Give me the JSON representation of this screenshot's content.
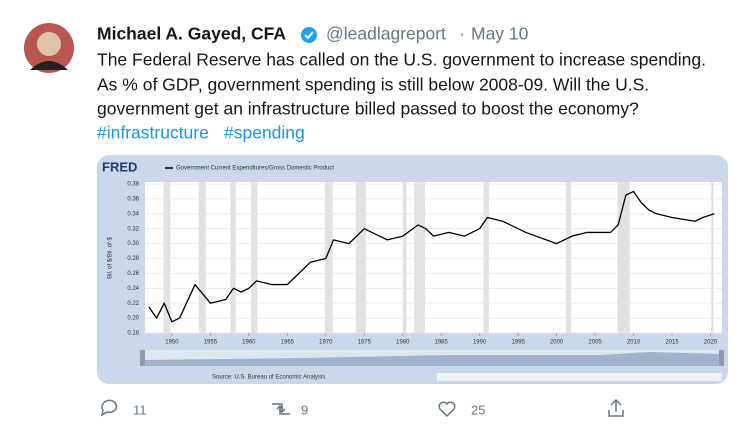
{
  "tweet": {
    "name": "Michael A. Gayed, CFA",
    "handle": "@leadlagreport",
    "separator": "·",
    "date": "May 10",
    "text_lines": [
      "The Federal Reserve has called on the U.S. government to increase spending.",
      "As % of GDP, government spending is still below 2008-09. Will the U.S.",
      "government get an infrastructure billed passed to boost the economy?"
    ],
    "hashtags": [
      "#infrastructure",
      "#spending"
    ],
    "replies": 11,
    "retweets": 9,
    "likes": 25
  },
  "chart_data": {
    "type": "line",
    "logo": "FRED",
    "title": "Government Current Expenditures/Gross Domestic Product",
    "ylabel": "Bil. of $/Bil. of $",
    "source": "Source: U.S. Bureau of Economic Analysis",
    "color": "#000000",
    "x": [
      1947,
      1948,
      1949,
      1950,
      1951,
      1953,
      1955,
      1957,
      1958,
      1959,
      1960,
      1961,
      1963,
      1965,
      1966,
      1968,
      1970,
      1971,
      1973,
      1975,
      1978,
      1980,
      1982,
      1983,
      1984,
      1986,
      1988,
      1990,
      1991,
      1993,
      1996,
      2000,
      2002,
      2004,
      2007,
      2008,
      2009,
      2010,
      2011,
      2012,
      2013,
      2015,
      2018,
      2019,
      2020.5
    ],
    "values": [
      0.215,
      0.2,
      0.22,
      0.195,
      0.2,
      0.245,
      0.22,
      0.225,
      0.24,
      0.235,
      0.24,
      0.25,
      0.245,
      0.245,
      0.255,
      0.275,
      0.28,
      0.305,
      0.3,
      0.32,
      0.305,
      0.31,
      0.325,
      0.32,
      0.31,
      0.315,
      0.31,
      0.32,
      0.335,
      0.33,
      0.315,
      0.3,
      0.31,
      0.315,
      0.315,
      0.325,
      0.365,
      0.37,
      0.355,
      0.345,
      0.34,
      0.335,
      0.33,
      0.335,
      0.34
    ],
    "recessions": [
      [
        1948.9,
        1949.8
      ],
      [
        1953.5,
        1954.4
      ],
      [
        1957.6,
        1958.3
      ],
      [
        1960.3,
        1961.1
      ],
      [
        1969.9,
        1970.9
      ],
      [
        1973.9,
        1975.2
      ],
      [
        1980.0,
        1980.5
      ],
      [
        1981.5,
        1982.9
      ],
      [
        1990.5,
        1991.2
      ],
      [
        2001.2,
        2001.9
      ],
      [
        2007.9,
        2009.5
      ],
      [
        2020.1,
        2020.4
      ]
    ],
    "xlim": [
      1946.5,
      2021.5
    ],
    "xticks": [
      1950,
      1955,
      1960,
      1965,
      1970,
      1975,
      1980,
      1985,
      1990,
      1995,
      2000,
      2005,
      2010,
      2015,
      2020
    ],
    "ylim": [
      0.18,
      0.38
    ],
    "yticks": [
      {
        "value": 0.18,
        "label": "0.18"
      },
      {
        "value": 0.2,
        "label": "0.20"
      },
      {
        "value": 0.22,
        "label": "0.22"
      },
      {
        "value": 0.24,
        "label": "0.24"
      },
      {
        "value": 0.26,
        "label": "0.26"
      },
      {
        "value": 0.28,
        "label": "0.28"
      },
      {
        "value": 0.3,
        "label": "0.30"
      },
      {
        "value": 0.32,
        "label": "0.32"
      },
      {
        "value": 0.34,
        "label": "0.34"
      },
      {
        "value": 0.36,
        "label": "0.36"
      },
      {
        "value": 0.38,
        "label": "0.38"
      }
    ],
    "grid": true
  }
}
